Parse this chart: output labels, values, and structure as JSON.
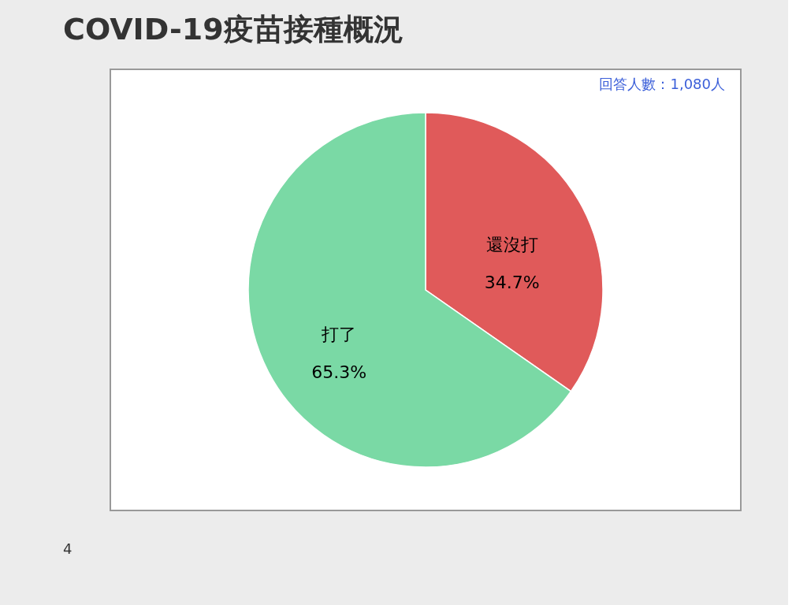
{
  "chart_data": {
    "type": "pie",
    "title": "COVID-19疫苗接種概況",
    "categories": [
      "還沒打",
      "打了"
    ],
    "values": [
      34.7,
      65.3
    ],
    "value_labels": [
      "34.7%",
      "65.3%"
    ],
    "colors": [
      "#e05a5a",
      "#7ad9a5"
    ],
    "annotations": [
      "回答人數：1,080人",
      "4"
    ]
  }
}
